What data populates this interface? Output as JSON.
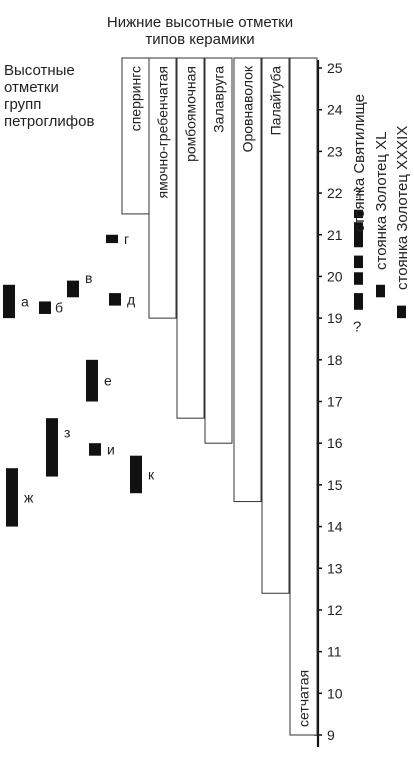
{
  "title_lines": [
    "Нижние высотные отметки",
    "типов керамики"
  ],
  "left_title_lines": [
    "Высотные",
    "отметки",
    "групп",
    "петроглифов"
  ],
  "axis": {
    "min": 9,
    "max": 25,
    "ticks": [
      9,
      10,
      11,
      12,
      13,
      14,
      15,
      16,
      17,
      18,
      19,
      20,
      21,
      22,
      23,
      24,
      25
    ]
  },
  "ceramics": [
    {
      "label": "сперрингс",
      "bottom": 21.5
    },
    {
      "label": "ямочно-гребенчатая",
      "bottom": 19.0
    },
    {
      "label": "ромбоямочная",
      "bottom": 16.6
    },
    {
      "label": "Залавруга",
      "bottom": 16.0
    },
    {
      "label": "Оровнаволок",
      "bottom": 14.6
    },
    {
      "label": "Палайгуба",
      "bottom": 12.4
    },
    {
      "label": "сетчатая",
      "bottom": 9.0
    }
  ],
  "petroglyph_groups": [
    {
      "label": "а",
      "low": 19.0,
      "high": 19.8
    },
    {
      "label": "б",
      "low": 19.1,
      "high": 19.4
    },
    {
      "label": "в",
      "low": 19.5,
      "high": 19.9
    },
    {
      "label": "г",
      "low": 20.8,
      "high": 21.0
    },
    {
      "label": "д",
      "low": 19.3,
      "high": 19.6
    },
    {
      "label": "е",
      "low": 17.0,
      "high": 18.0
    },
    {
      "label": "з",
      "low": 15.2,
      "high": 16.6
    },
    {
      "label": "и",
      "low": 15.7,
      "high": 16.0
    },
    {
      "label": "к",
      "low": 14.8,
      "high": 15.7
    },
    {
      "label": "ж",
      "low": 14.0,
      "high": 15.4
    }
  ],
  "sites": [
    {
      "label": "стоянка Святилище",
      "segments": [
        [
          19.2,
          19.6
        ],
        [
          19.8,
          20.1
        ],
        [
          20.2,
          20.5
        ],
        [
          20.7,
          21.3
        ],
        [
          21.4,
          21.6
        ]
      ],
      "marks": [
        {
          "text": "?",
          "at": 22.0
        },
        {
          "text": "?",
          "at": 18.8
        }
      ]
    },
    {
      "label": "стоянка Золотец XL",
      "segments": [
        [
          19.5,
          19.8
        ]
      ],
      "marks": []
    },
    {
      "label": "стоянка Золотец XXXIX",
      "segments": [
        [
          19.0,
          19.3
        ]
      ],
      "marks": []
    }
  ]
}
